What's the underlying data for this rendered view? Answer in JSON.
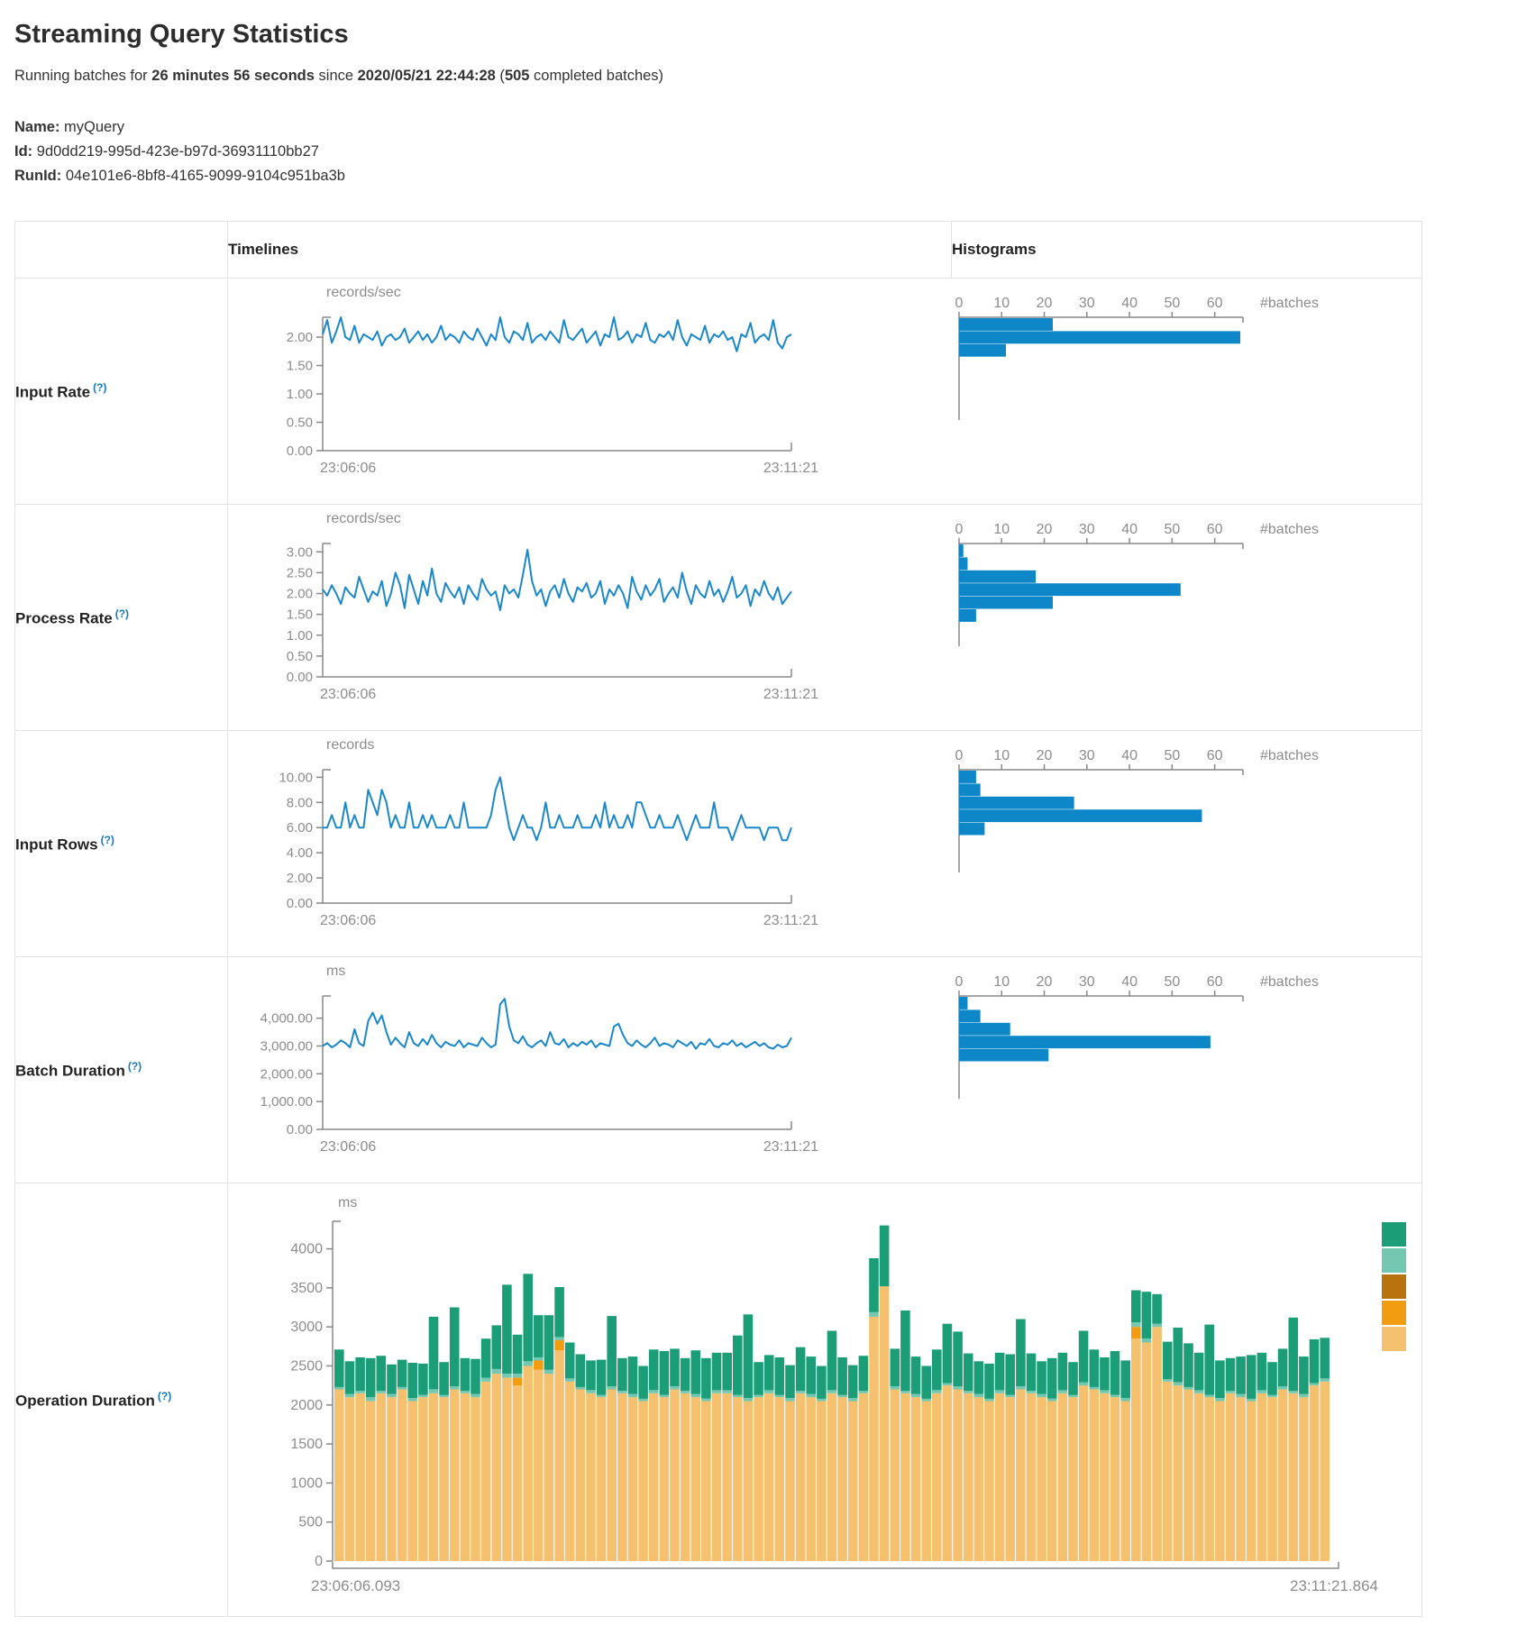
{
  "page": {
    "title": "Streaming Query Statistics",
    "subtitle": {
      "prefix": "Running batches for ",
      "duration": "26 minutes 56 seconds",
      "middle": " since ",
      "start_time": "2020/05/21 22:44:28",
      "paren_open": " (",
      "batch_count": "505",
      "suffix": " completed batches)"
    },
    "meta": {
      "name_label": "Name:",
      "name_value": "myQuery",
      "id_label": "Id:",
      "id_value": "9d0dd219-995d-423e-b97d-36931110bb27",
      "runid_label": "RunId:",
      "runid_value": "04e101e6-8bf8-4165-9099-9104c951ba3b"
    }
  },
  "table": {
    "columns": {
      "timelines": "Timelines",
      "histograms": "Histograms"
    },
    "rows": [
      {
        "label": "Input Rate",
        "help": "(?)"
      },
      {
        "label": "Process Rate",
        "help": "(?)"
      },
      {
        "label": "Input Rows",
        "help": "(?)"
      },
      {
        "label": "Batch Duration",
        "help": "(?)"
      },
      {
        "label": "Operation Duration",
        "help": "(?)"
      }
    ]
  },
  "colors": {
    "line": "#1a87c8",
    "bar": "#0d87c8",
    "axis": "#888888",
    "tick_text": "#8c8c8c",
    "stack_segments": [
      "#f6c16e",
      "#f29c11",
      "#74c7b0",
      "#1b9e77"
    ],
    "legend": [
      "#1b9e77",
      "#74c7b0",
      "#b8720e",
      "#f29c11",
      "#f6c16e"
    ]
  },
  "chart_data": [
    {
      "id": "input_rate_timeline",
      "type": "line",
      "unit": "records/sec",
      "x_start": "23:06:06",
      "x_end": "23:11:21",
      "ytick_labels": [
        "2.00",
        "1.50",
        "1.00",
        "0.50",
        "0.00"
      ],
      "ytick_values": [
        2,
        1.5,
        1,
        0.5,
        0
      ],
      "ymax": 2.35,
      "values": [
        2.05,
        2.3,
        1.9,
        2.1,
        2.35,
        2.0,
        1.95,
        2.2,
        1.9,
        2.05,
        2.0,
        1.95,
        2.1,
        1.85,
        2.0,
        2.05,
        1.95,
        2.0,
        2.15,
        1.9,
        2.0,
        2.1,
        1.95,
        2.05,
        1.9,
        2.0,
        2.2,
        1.95,
        2.05,
        2.0,
        1.9,
        2.1,
        2.0,
        1.95,
        2.15,
        2.0,
        1.85,
        2.05,
        1.95,
        2.35,
        2.0,
        1.9,
        2.1,
        2.05,
        1.95,
        2.25,
        1.9,
        2.0,
        2.05,
        1.95,
        2.1,
        2.0,
        1.9,
        2.3,
        2.0,
        1.95,
        2.05,
        2.15,
        1.9,
        2.0,
        2.1,
        1.85,
        2.05,
        2.0,
        2.35,
        1.95,
        2.0,
        2.1,
        1.9,
        2.05,
        2.0,
        2.25,
        1.95,
        1.9,
        2.05,
        2.0,
        2.1,
        1.95,
        2.3,
        2.0,
        1.85,
        2.05,
        2.0,
        1.95,
        2.2,
        1.9,
        2.05,
        2.0,
        2.1,
        1.95,
        2.0,
        1.75,
        2.05,
        2.0,
        2.25,
        1.9,
        2.0,
        2.05,
        1.95,
        2.3,
        1.9,
        1.8,
        2.0,
        2.05
      ]
    },
    {
      "id": "input_rate_hist",
      "type": "bar",
      "xlabel": "#batches",
      "xticks": [
        0,
        10,
        20,
        30,
        40,
        50,
        60
      ],
      "xmax": 66,
      "values": [
        22,
        66,
        11
      ]
    },
    {
      "id": "process_rate_timeline",
      "type": "line",
      "unit": "records/sec",
      "x_start": "23:06:06",
      "x_end": "23:11:21",
      "ytick_labels": [
        "3.00",
        "2.50",
        "2.00",
        "1.50",
        "1.00",
        "0.50",
        "0.00"
      ],
      "ytick_values": [
        3,
        2.5,
        2,
        1.5,
        1,
        0.5,
        0
      ],
      "ymax": 3.2,
      "values": [
        2.1,
        1.95,
        2.2,
        2.0,
        1.75,
        2.15,
        2.0,
        1.9,
        2.4,
        2.1,
        1.8,
        2.05,
        1.95,
        2.3,
        1.7,
        2.0,
        2.5,
        2.2,
        1.65,
        2.45,
        2.1,
        1.75,
        2.3,
        1.95,
        2.6,
        2.0,
        1.8,
        2.25,
        2.05,
        1.9,
        2.15,
        1.75,
        2.2,
        2.0,
        1.85,
        2.35,
        2.1,
        1.95,
        2.05,
        1.6,
        2.2,
        2.0,
        2.1,
        1.9,
        2.45,
        3.05,
        2.3,
        1.95,
        2.1,
        1.7,
        2.05,
        2.2,
        1.9,
        2.35,
        2.0,
        1.8,
        2.15,
        2.05,
        2.25,
        1.9,
        2.0,
        2.3,
        1.75,
        2.1,
        1.95,
        2.2,
        2.0,
        1.65,
        2.4,
        2.05,
        1.85,
        2.2,
        1.95,
        2.1,
        2.35,
        1.8,
        2.0,
        2.15,
        1.9,
        2.5,
        2.05,
        1.75,
        2.2,
        2.0,
        1.9,
        2.3,
        1.95,
        2.1,
        1.8,
        2.05,
        2.4,
        1.9,
        2.0,
        2.2,
        1.7,
        2.1,
        1.95,
        2.3,
        2.0,
        1.85,
        2.15,
        1.75,
        1.9,
        2.05
      ]
    },
    {
      "id": "process_rate_hist",
      "type": "bar",
      "xlabel": "#batches",
      "xticks": [
        0,
        10,
        20,
        30,
        40,
        50,
        60
      ],
      "xmax": 66,
      "values": [
        1,
        2,
        18,
        52,
        22,
        4
      ]
    },
    {
      "id": "input_rows_timeline",
      "type": "line",
      "unit": "records",
      "x_start": "23:06:06",
      "x_end": "23:11:21",
      "ytick_labels": [
        "10.00",
        "8.00",
        "6.00",
        "4.00",
        "2.00",
        "0.00"
      ],
      "ytick_values": [
        10,
        8,
        6,
        4,
        2,
        0
      ],
      "ymax": 10.6,
      "values": [
        6,
        6,
        7,
        6,
        6,
        8,
        6,
        7,
        6,
        6,
        9,
        8,
        7,
        9,
        8,
        6,
        7,
        6,
        6,
        8,
        6,
        6,
        7,
        6,
        7,
        6,
        6,
        6,
        7,
        6,
        6,
        8,
        6,
        6,
        6,
        6,
        6,
        7,
        9,
        10,
        8,
        6,
        5,
        6,
        7,
        6,
        6,
        5,
        6,
        8,
        6,
        6,
        7,
        6,
        6,
        6,
        7,
        6,
        6,
        6,
        7,
        6,
        8,
        6,
        7,
        6,
        6,
        7,
        6,
        8,
        8,
        7,
        6,
        6,
        7,
        6,
        6,
        6,
        7,
        6,
        5,
        6,
        7,
        6,
        6,
        6,
        8,
        6,
        6,
        6,
        5,
        6,
        7,
        6,
        6,
        6,
        6,
        5,
        6,
        6,
        6,
        5,
        5,
        6
      ]
    },
    {
      "id": "input_rows_hist",
      "type": "bar",
      "xlabel": "#batches",
      "xticks": [
        0,
        10,
        20,
        30,
        40,
        50,
        60
      ],
      "xmax": 66,
      "values": [
        4,
        5,
        27,
        57,
        6
      ]
    },
    {
      "id": "batch_duration_timeline",
      "type": "line",
      "unit": "ms",
      "x_start": "23:06:06",
      "x_end": "23:11:21",
      "ytick_labels": [
        "4,000.00",
        "3,000.00",
        "2,000.00",
        "1,000.00",
        "0.00"
      ],
      "ytick_values": [
        4000,
        3000,
        2000,
        1000,
        0
      ],
      "ymax": 4800,
      "values": [
        3000,
        3100,
        2950,
        3050,
        3200,
        3100,
        2950,
        3600,
        3100,
        3000,
        3900,
        4200,
        3800,
        4100,
        3500,
        3050,
        3300,
        3100,
        2950,
        3500,
        3100,
        3000,
        3250,
        3050,
        3400,
        3100,
        2950,
        3150,
        3050,
        3000,
        3200,
        2950,
        3100,
        3050,
        3000,
        3300,
        3100,
        2950,
        3050,
        4500,
        4700,
        3700,
        3200,
        3100,
        3350,
        3050,
        2950,
        3100,
        3200,
        3000,
        3500,
        3100,
        3050,
        3250,
        2950,
        3100,
        3000,
        3150,
        3050,
        3200,
        2950,
        3100,
        3050,
        3000,
        3700,
        3800,
        3400,
        3100,
        3000,
        3200,
        3050,
        2950,
        3100,
        3300,
        3000,
        3100,
        3050,
        2950,
        3200,
        3100,
        3000,
        3150,
        2900,
        3100,
        3050,
        3250,
        3000,
        2950,
        3100,
        3050,
        3200,
        3000,
        3100,
        2950,
        3050,
        3150,
        3000,
        3100,
        2950,
        2900,
        3050,
        2950,
        3000,
        3300
      ]
    },
    {
      "id": "batch_duration_hist",
      "type": "bar",
      "xlabel": "#batches",
      "xticks": [
        0,
        10,
        20,
        30,
        40,
        50,
        60
      ],
      "xmax": 66,
      "values": [
        2,
        5,
        12,
        59,
        21
      ]
    },
    {
      "id": "operation_duration",
      "type": "stacked_bar",
      "unit": "ms",
      "x_start": "23:06:06.093",
      "x_end": "23:11:21.864",
      "ytick_labels": [
        "4000",
        "3500",
        "3000",
        "2500",
        "2000",
        "1500",
        "1000",
        "500",
        "0"
      ],
      "ytick_values": [
        4000,
        3500,
        3000,
        2500,
        2000,
        1500,
        1000,
        500,
        0
      ],
      "ymax": 4353,
      "bars": [
        [
          2200,
          0,
          30,
          480
        ],
        [
          2100,
          0,
          40,
          420
        ],
        [
          2150,
          0,
          30,
          430
        ],
        [
          2050,
          0,
          50,
          500
        ],
        [
          2150,
          0,
          30,
          450
        ],
        [
          2100,
          0,
          40,
          380
        ],
        [
          2200,
          0,
          30,
          350
        ],
        [
          2050,
          0,
          40,
          450
        ],
        [
          2100,
          0,
          30,
          400
        ],
        [
          2150,
          0,
          50,
          930
        ],
        [
          2100,
          0,
          30,
          420
        ],
        [
          2200,
          0,
          40,
          1010
        ],
        [
          2150,
          0,
          30,
          420
        ],
        [
          2100,
          0,
          40,
          450
        ],
        [
          2300,
          0,
          50,
          500
        ],
        [
          2400,
          0,
          60,
          560
        ],
        [
          2350,
          0,
          50,
          1140
        ],
        [
          2250,
          100,
          50,
          500
        ],
        [
          2500,
          0,
          60,
          1120
        ],
        [
          2450,
          120,
          40,
          540
        ],
        [
          2400,
          0,
          50,
          700
        ],
        [
          2700,
          130,
          40,
          640
        ],
        [
          2300,
          0,
          40,
          460
        ],
        [
          2200,
          0,
          30,
          420
        ],
        [
          2150,
          0,
          40,
          380
        ],
        [
          2100,
          0,
          30,
          450
        ],
        [
          2200,
          0,
          40,
          900
        ],
        [
          2150,
          0,
          30,
          420
        ],
        [
          2100,
          0,
          40,
          480
        ],
        [
          2050,
          0,
          30,
          420
        ],
        [
          2150,
          0,
          40,
          520
        ],
        [
          2100,
          0,
          30,
          560
        ],
        [
          2200,
          0,
          40,
          480
        ],
        [
          2150,
          0,
          30,
          420
        ],
        [
          2100,
          0,
          40,
          560
        ],
        [
          2050,
          0,
          30,
          520
        ],
        [
          2150,
          0,
          40,
          480
        ],
        [
          2150,
          0,
          40,
          480
        ],
        [
          2100,
          0,
          30,
          760
        ],
        [
          2050,
          0,
          40,
          1070
        ],
        [
          2100,
          0,
          30,
          420
        ],
        [
          2150,
          0,
          40,
          450
        ],
        [
          2100,
          0,
          30,
          480
        ],
        [
          2050,
          0,
          40,
          420
        ],
        [
          2150,
          0,
          30,
          560
        ],
        [
          2100,
          0,
          40,
          480
        ],
        [
          2050,
          0,
          30,
          420
        ],
        [
          2150,
          0,
          40,
          760
        ],
        [
          2100,
          0,
          30,
          480
        ],
        [
          2050,
          0,
          40,
          420
        ],
        [
          2150,
          0,
          30,
          450
        ],
        [
          3130,
          0,
          60,
          690
        ],
        [
          3520,
          0,
          0,
          780
        ],
        [
          2200,
          0,
          40,
          480
        ],
        [
          2150,
          0,
          30,
          1030
        ],
        [
          2100,
          0,
          40,
          480
        ],
        [
          2050,
          0,
          30,
          420
        ],
        [
          2150,
          0,
          40,
          520
        ],
        [
          2250,
          0,
          30,
          760
        ],
        [
          2200,
          0,
          40,
          700
        ],
        [
          2150,
          0,
          30,
          480
        ],
        [
          2100,
          0,
          40,
          420
        ],
        [
          2050,
          0,
          30,
          450
        ],
        [
          2150,
          0,
          40,
          480
        ],
        [
          2100,
          0,
          30,
          520
        ],
        [
          2200,
          0,
          40,
          860
        ],
        [
          2150,
          0,
          30,
          480
        ],
        [
          2100,
          0,
          40,
          420
        ],
        [
          2050,
          0,
          30,
          520
        ],
        [
          2150,
          0,
          40,
          480
        ],
        [
          2100,
          0,
          30,
          420
        ],
        [
          2250,
          0,
          40,
          660
        ],
        [
          2200,
          0,
          30,
          480
        ],
        [
          2150,
          0,
          40,
          420
        ],
        [
          2100,
          0,
          30,
          560
        ],
        [
          2050,
          0,
          40,
          480
        ],
        [
          2850,
          150,
          60,
          410
        ],
        [
          2800,
          0,
          50,
          600
        ],
        [
          3000,
          0,
          40,
          380
        ],
        [
          2300,
          0,
          30,
          480
        ],
        [
          2250,
          0,
          40,
          700
        ],
        [
          2200,
          0,
          30,
          560
        ],
        [
          2150,
          0,
          40,
          480
        ],
        [
          2100,
          0,
          30,
          900
        ],
        [
          2050,
          0,
          40,
          480
        ],
        [
          2150,
          0,
          30,
          420
        ],
        [
          2100,
          0,
          40,
          480
        ],
        [
          2050,
          0,
          30,
          560
        ],
        [
          2150,
          0,
          40,
          480
        ],
        [
          2100,
          0,
          30,
          420
        ],
        [
          2200,
          0,
          40,
          480
        ],
        [
          2150,
          0,
          30,
          940
        ],
        [
          2100,
          0,
          40,
          480
        ],
        [
          2250,
          0,
          30,
          560
        ],
        [
          2300,
          0,
          40,
          520
        ]
      ]
    }
  ]
}
